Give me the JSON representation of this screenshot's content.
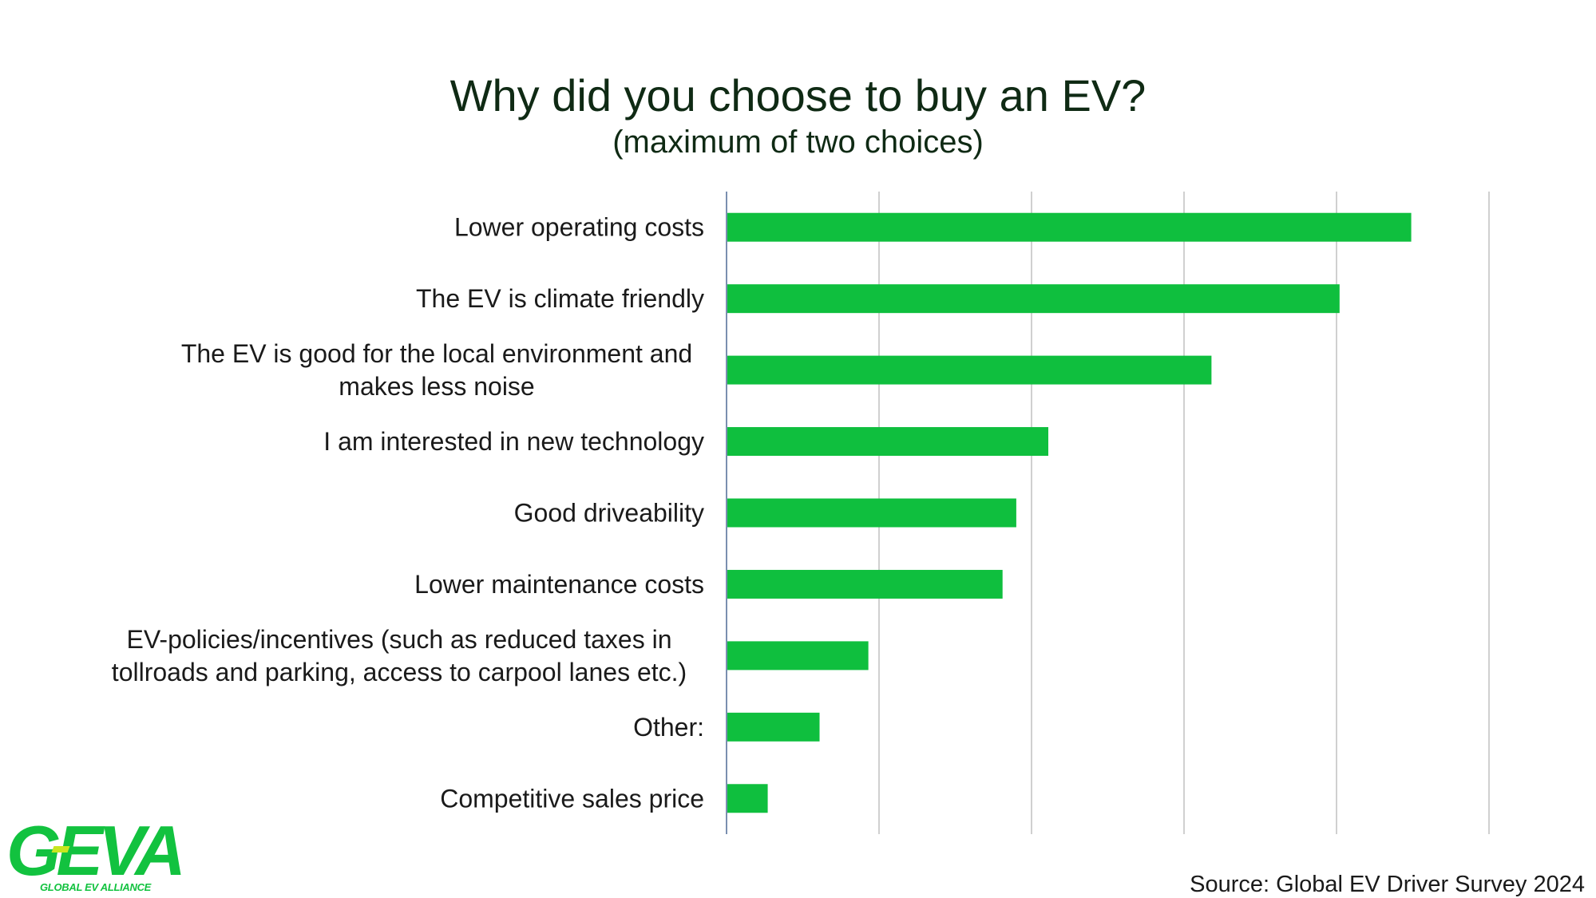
{
  "chart_data": {
    "type": "bar",
    "orientation": "horizontal",
    "title": "Why did you choose to buy an EV?",
    "subtitle": "(maximum of two choices)",
    "categories": [
      "Lower operating costs",
      "The EV is climate friendly",
      "The EV is good for the local environment and makes less noise",
      "I am interested in new technology",
      "Good driveability",
      "Lower maintenance costs",
      "EV-policies/incentives (such as reduced taxes in tollroads and parking, access to carpool lanes etc.)",
      "Other:",
      "Competitive sales price"
    ],
    "category_lines": [
      [
        "Lower operating costs"
      ],
      [
        "The EV is climate friendly"
      ],
      [
        "The EV is good for the local environment and",
        "makes less noise"
      ],
      [
        "I am interested in new technology"
      ],
      [
        "Good driveability"
      ],
      [
        "Lower maintenance costs"
      ],
      [
        "EV-policies/incentives (such as reduced taxes in",
        "tollroads and parking, access to carpool lanes etc.)"
      ],
      [
        "Other:"
      ],
      [
        "Competitive sales price"
      ]
    ],
    "values": [
      44.9,
      40.2,
      31.8,
      21.1,
      19.0,
      18.1,
      9.3,
      6.1,
      2.7
    ],
    "xlim": [
      0,
      50
    ],
    "gridlines": [
      10,
      20,
      30,
      40,
      50
    ],
    "grid": true,
    "tick_labels_shown": false,
    "bar_color": "#0fbf3e",
    "grid_color": "#d0d0d0",
    "axis_color": "#7a8fb0",
    "xlabel": "",
    "ylabel": ""
  },
  "logo": {
    "text": "GEVA",
    "subtext": "GLOBAL EV ALLIANCE",
    "color": "#12c23f"
  },
  "source": "Source: Global EV Driver Survey 2024"
}
